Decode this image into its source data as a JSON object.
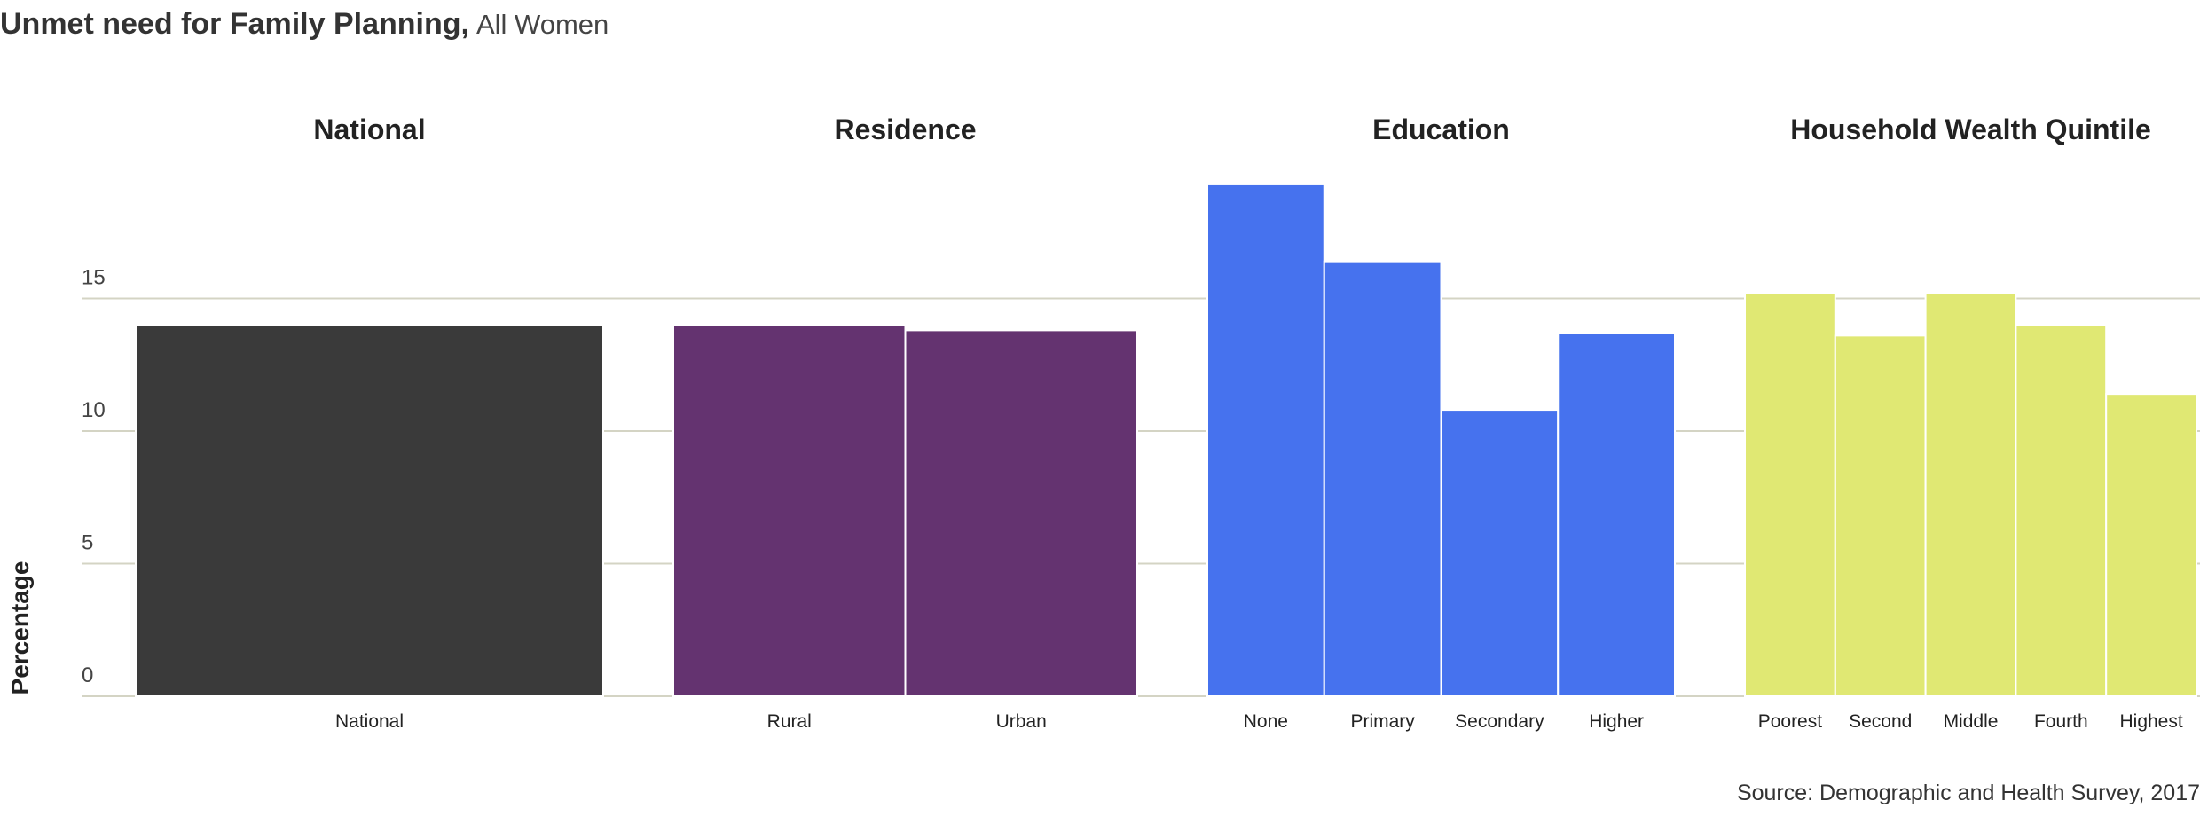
{
  "title": "Unmet need for Family Planning,",
  "subtitle": "All Women",
  "source": "Source: Demographic and Health Survey, 2017",
  "chart_data": {
    "type": "bar",
    "ylabel": "Percentage",
    "ylim": [
      0,
      20
    ],
    "yticks": [
      0,
      5,
      10,
      15
    ],
    "grid": true,
    "groups": [
      {
        "name": "National",
        "color": "#3a3a3a",
        "categories": [
          "National"
        ],
        "values": [
          14.0
        ]
      },
      {
        "name": "Residence",
        "color": "#643370",
        "categories": [
          "Rural",
          "Urban"
        ],
        "values": [
          14.0,
          13.8
        ]
      },
      {
        "name": "Education",
        "color": "#4672ee",
        "categories": [
          "None",
          "Primary",
          "Secondary",
          "Higher"
        ],
        "values": [
          19.3,
          16.4,
          10.8,
          13.7
        ]
      },
      {
        "name": "Household Wealth Quintile",
        "color": "#e0e873",
        "categories": [
          "Poorest",
          "Second",
          "Middle",
          "Fourth",
          "Highest"
        ],
        "values": [
          15.2,
          13.6,
          15.2,
          14.0,
          11.4
        ]
      }
    ]
  }
}
